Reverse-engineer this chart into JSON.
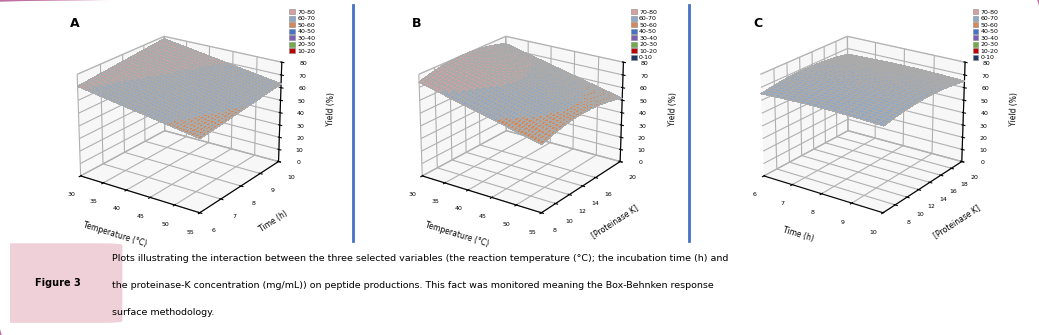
{
  "title": "Figure 3",
  "caption": "Plots illustrating the interaction between the three selected variables (the reaction temperature (°C); the incubation time (h) and the proteinase-K concentration (mg/mL)) on peptide productions. This fact was monitored meaning the Box-Behnken response surface methodology.",
  "panels": [
    "A",
    "B",
    "C"
  ],
  "panel_A": {
    "xlabel": "Temperature (°C)",
    "ylabel": "Yield (%)",
    "zlabel": "Time (h)",
    "x_ticks": [
      30,
      35,
      40,
      45,
      50,
      55
    ],
    "y_ticks": [
      0,
      10,
      20,
      30,
      40,
      50,
      60,
      70,
      80
    ],
    "z_ticks": [
      6,
      7,
      8,
      9,
      10
    ],
    "xmin": 30,
    "xmax": 55,
    "zmin": 6,
    "zmax": 10,
    "ymin": 0,
    "ymax": 80
  },
  "panel_B": {
    "xlabel": "Temperature (°C)",
    "ylabel": "Yield (%)",
    "zlabel": "[Proteinase K]",
    "x_ticks": [
      30,
      35,
      40,
      45,
      50,
      55
    ],
    "y_ticks": [
      0,
      10,
      20,
      30,
      40,
      50,
      60,
      70,
      80
    ],
    "z_ticks": [
      8,
      10,
      12,
      14,
      16,
      20
    ],
    "xmin": 30,
    "xmax": 55,
    "zmin": 8,
    "zmax": 20,
    "ymin": 0,
    "ymax": 80
  },
  "panel_C": {
    "xlabel": "Time (h)",
    "ylabel": "Yield (%)",
    "zlabel": "[Proteinase K]",
    "x_ticks": [
      6,
      7,
      8,
      9,
      10
    ],
    "y_ticks": [
      0,
      10,
      20,
      30,
      40,
      50,
      60,
      70,
      80
    ],
    "z_ticks": [
      8,
      10,
      12,
      14,
      16,
      18,
      20
    ],
    "xmin": 6,
    "xmax": 10,
    "zmin": 6,
    "zmax": 20,
    "ymin": 0,
    "ymax": 80
  },
  "legend_labels_A": [
    "70-80",
    "60-70",
    "50-60",
    "40-50",
    "30-40",
    "20-30",
    "10-20"
  ],
  "legend_labels_BC": [
    "70-80",
    "60-70",
    "50-60",
    "40-50",
    "30-40",
    "20-30",
    "10-20",
    "0-10"
  ],
  "color_7080": "#d4a0a0",
  "color_6070": "#8fa8c8",
  "color_5060": "#d4895a",
  "color_4050": "#4472c4",
  "color_3040": "#7b5fb5",
  "color_2030": "#70ad47",
  "color_1020": "#c00000",
  "color_010": "#1f3864",
  "bg_color": "#ffffff",
  "border_color": "#c070a0",
  "fig_label_bg": "#f0d0d8",
  "divider_color": "#4472c4",
  "pane_color": "#f0f0f0",
  "grid_color": "#c0c0c0",
  "elev": 22,
  "azim_A": -55,
  "azim_B": -55,
  "azim_C": -55
}
